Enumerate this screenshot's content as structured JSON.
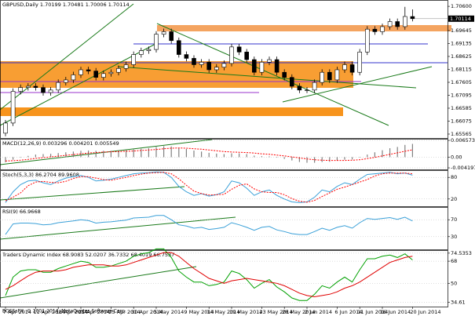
{
  "chart_data": [
    {
      "type": "candlestick",
      "title": "GBPUSD,Daily  1.70199 1.70481 1.70006 1.70114",
      "categories": [
        "7 Apr 2014",
        null,
        null,
        null,
        "11 Apr 2014",
        null,
        null,
        "16 Apr 2014",
        null,
        null,
        "21 Apr 2014",
        null,
        null,
        null,
        "25 Apr 2014",
        null,
        null,
        "30 Apr 2014",
        null,
        null,
        "5 May 2014",
        null,
        null,
        null,
        "9 May 2014",
        null,
        null,
        "14 May 2014",
        null,
        null,
        "19 May 2014",
        null,
        null,
        null,
        "23 May 2014",
        null,
        null,
        "28 May 2014",
        null,
        null,
        "2 Jun 2014",
        null,
        null,
        null,
        "6 Jun 2014",
        null,
        null,
        "11 Jun 2014",
        null,
        null,
        "16 Jun 2014",
        null,
        null,
        null,
        "20 Jun 2014"
      ],
      "open": [
        1.656,
        1.66,
        1.6725,
        1.674,
        1.6745,
        1.674,
        1.672,
        1.673,
        1.676,
        1.677,
        1.679,
        1.681,
        1.6805,
        1.678,
        1.6795,
        1.68,
        1.6815,
        1.683,
        1.687,
        1.6885,
        1.689,
        1.695,
        1.696,
        1.6925,
        1.687,
        1.6855,
        1.683,
        1.684,
        1.681,
        1.682,
        1.6835,
        1.69,
        1.688,
        1.685,
        1.68,
        1.684,
        1.685,
        1.68,
        1.678,
        1.6745,
        1.673,
        1.673,
        1.676,
        1.68,
        1.677,
        1.681,
        1.683,
        1.68,
        1.688,
        1.697,
        1.696,
        1.698,
        1.7,
        1.698,
        1.70199
      ],
      "high": [
        1.6612,
        1.6737,
        1.6752,
        1.6757,
        1.6757,
        1.6752,
        1.6742,
        1.6772,
        1.6782,
        1.6802,
        1.6822,
        1.6822,
        1.6817,
        1.6807,
        1.6812,
        1.6827,
        1.6842,
        1.6882,
        1.6897,
        1.6902,
        1.6962,
        1.6972,
        1.6972,
        1.6937,
        1.6882,
        1.6867,
        1.6852,
        1.6852,
        1.6832,
        1.6847,
        1.6912,
        1.6912,
        1.6892,
        1.6862,
        1.6852,
        1.6862,
        1.6862,
        1.6812,
        1.6792,
        1.6757,
        1.6742,
        1.6772,
        1.6812,
        1.6812,
        1.6822,
        1.6842,
        1.6842,
        1.6892,
        1.6982,
        1.6982,
        1.6992,
        1.7012,
        1.7012,
        1.7058,
        1.70481
      ],
      "low": [
        1.6548,
        1.6588,
        1.6713,
        1.6728,
        1.6728,
        1.6708,
        1.6708,
        1.6718,
        1.6748,
        1.6758,
        1.6778,
        1.6793,
        1.6768,
        1.6768,
        1.6783,
        1.6788,
        1.6803,
        1.6818,
        1.6858,
        1.6873,
        1.6878,
        1.6938,
        1.6913,
        1.6858,
        1.6843,
        1.6818,
        1.6818,
        1.6798,
        1.6798,
        1.6808,
        1.6823,
        1.6868,
        1.6838,
        1.6788,
        1.6788,
        1.6828,
        1.6788,
        1.6768,
        1.6733,
        1.6718,
        1.6718,
        1.6718,
        1.6748,
        1.6758,
        1.6758,
        1.6798,
        1.6788,
        1.6788,
        1.6868,
        1.6948,
        1.6948,
        1.6968,
        1.6968,
        1.6968,
        1.70006
      ],
      "close": [
        1.66,
        1.6725,
        1.674,
        1.6745,
        1.674,
        1.672,
        1.673,
        1.676,
        1.677,
        1.679,
        1.681,
        1.6805,
        1.678,
        1.6795,
        1.68,
        1.6815,
        1.683,
        1.687,
        1.6885,
        1.689,
        1.695,
        1.696,
        1.6925,
        1.687,
        1.6855,
        1.683,
        1.684,
        1.681,
        1.682,
        1.6835,
        1.69,
        1.688,
        1.685,
        1.68,
        1.684,
        1.685,
        1.68,
        1.678,
        1.6745,
        1.673,
        1.673,
        1.676,
        1.68,
        1.677,
        1.681,
        1.683,
        1.68,
        1.688,
        1.697,
        1.696,
        1.698,
        1.7,
        1.698,
        1.702,
        1.70114
      ],
      "ylim": [
        1.6541,
        1.7085
      ],
      "yticks": [
        {
          "value": 1.706,
          "label": "1.70600"
        },
        1.69645,
        1.69135,
        1.68625,
        1.68115,
        1.67605,
        1.67095,
        1.66585,
        1.66075,
        1.65565
      ],
      "bull_color": "#ffffff",
      "bear_color": "#000000"
    },
    {
      "type": "macd",
      "title": "MACD(12,26,9) 0.003296 0.004201 0.005549",
      "ylim": [
        -0.0048,
        0.0072
      ],
      "yticks": [
        0.006573,
        {
          "value": 0,
          "label": "0.00"
        },
        -0.004197
      ],
      "series": [
        {
          "kind": "histogram",
          "color": "#808080",
          "values": [
            -0.002,
            -0.001,
            -0.0002,
            0.0005,
            0.001,
            0.0012,
            0.0013,
            0.0016,
            0.0019,
            0.0022,
            0.0025,
            0.0026,
            0.0025,
            0.0025,
            0.0025,
            0.0026,
            0.0027,
            0.003,
            0.0033,
            0.0035,
            0.004,
            0.0043,
            0.0042,
            0.0037,
            0.0032,
            0.0026,
            0.0022,
            0.0017,
            0.0014,
            0.0012,
            0.0015,
            0.0015,
            0.0012,
            0.0006,
            0.0004,
            0.0003,
            -0.0002,
            -0.0007,
            -0.0013,
            -0.0019,
            -0.0022,
            -0.0022,
            -0.0019,
            -0.0018,
            -0.0014,
            -0.001,
            -0.0009,
            -0.0002,
            0.001,
            0.0019,
            0.0027,
            0.0035,
            0.004,
            0.0048,
            0.0052
          ]
        },
        {
          "kind": "line",
          "dash": true,
          "color": "#ff0000",
          "values": [
            -0.0015,
            -0.0014,
            -0.0012,
            -0.0009,
            -0.0005,
            -0.0002,
            0.0001,
            0.0004,
            0.0007,
            0.001,
            0.0013,
            0.0016,
            0.0018,
            0.002,
            0.0021,
            0.0022,
            0.0023,
            0.0024,
            0.0026,
            0.0028,
            0.003,
            0.0033,
            0.0035,
            0.0036,
            0.0035,
            0.0033,
            0.0031,
            0.0028,
            0.0025,
            0.0022,
            0.002,
            0.0019,
            0.0018,
            0.0016,
            0.0013,
            0.0011,
            0.0008,
            0.0005,
            0.0001,
            -0.0003,
            -0.0007,
            -0.001,
            -0.0012,
            -0.0013,
            -0.0013,
            -0.0013,
            -0.0012,
            -0.001,
            -0.0006,
            -0.0001,
            0.0005,
            0.0011,
            0.0017,
            0.0023,
            0.0029
          ]
        }
      ]
    },
    {
      "type": "line",
      "title": "Stoch(5,3,3) 86.2704 89.9608",
      "ylim": [
        0,
        100
      ],
      "yticks": [
        80,
        20
      ],
      "series": [
        {
          "kind": "line",
          "color": "#3aa0d8",
          "values": [
            10,
            40,
            60,
            70,
            72,
            65,
            60,
            70,
            78,
            82,
            85,
            80,
            70,
            72,
            75,
            80,
            85,
            90,
            92,
            93,
            95,
            94,
            80,
            55,
            40,
            30,
            35,
            28,
            32,
            40,
            70,
            65,
            50,
            30,
            40,
            45,
            30,
            20,
            12,
            10,
            12,
            25,
            45,
            40,
            55,
            65,
            60,
            75,
            88,
            90,
            92,
            94,
            90,
            92,
            86
          ]
        },
        {
          "kind": "line",
          "dash": true,
          "color": "#ff0000",
          "values": [
            15,
            25,
            37,
            57,
            67,
            69,
            66,
            65,
            69,
            77,
            82,
            82,
            78,
            74,
            72,
            76,
            80,
            85,
            89,
            92,
            93,
            94,
            90,
            76,
            58,
            42,
            35,
            31,
            32,
            33,
            47,
            58,
            62,
            48,
            40,
            38,
            38,
            32,
            21,
            14,
            11,
            16,
            27,
            37,
            47,
            53,
            60,
            67,
            74,
            84,
            90,
            92,
            92,
            92,
            90
          ]
        }
      ]
    },
    {
      "type": "line",
      "title": "RSI(9) 66.9668",
      "ylim": [
        0,
        100
      ],
      "yticks": [
        70,
        30
      ],
      "series": [
        {
          "kind": "line",
          "color": "#3aa0d8",
          "values": [
            35,
            60,
            62,
            62,
            61,
            58,
            59,
            63,
            65,
            67,
            70,
            68,
            62,
            64,
            65,
            67,
            69,
            74,
            75,
            76,
            80,
            80,
            70,
            58,
            55,
            50,
            52,
            47,
            49,
            52,
            63,
            58,
            52,
            45,
            52,
            54,
            46,
            42,
            37,
            35,
            35,
            42,
            50,
            45,
            52,
            56,
            50,
            63,
            73,
            71,
            73,
            75,
            71,
            76,
            67
          ]
        }
      ]
    },
    {
      "type": "line",
      "title": "Traders Dynamic Index 68.9083 52.0207 36.7332 68.4019 66.7537",
      "ylim": [
        31,
        77
      ],
      "yticks": [
        74.5353,
        68,
        50,
        34.61
      ],
      "series": [
        {
          "kind": "line",
          "color": "#00a000",
          "values": [
            40,
            55,
            60,
            61,
            61,
            59,
            59,
            62,
            64,
            66,
            68,
            67,
            63,
            63,
            64,
            66,
            68,
            72,
            74,
            75,
            78,
            78,
            71,
            60,
            55,
            51,
            51,
            48,
            49,
            51,
            60,
            58,
            53,
            46,
            50,
            53,
            47,
            43,
            38,
            36,
            36,
            41,
            48,
            46,
            51,
            55,
            51,
            61,
            70,
            70,
            72,
            73,
            71,
            74,
            69
          ]
        },
        {
          "kind": "line",
          "color": "#e00000",
          "values": [
            45,
            48,
            52,
            56,
            59,
            60,
            60,
            60,
            61,
            63,
            64,
            65,
            65,
            65,
            64,
            64,
            65,
            67,
            69,
            71,
            73,
            75,
            75,
            72,
            67,
            62,
            58,
            54,
            52,
            50,
            52,
            53,
            54,
            53,
            52,
            51,
            50,
            48,
            45,
            42,
            40,
            39,
            40,
            41,
            43,
            46,
            48,
            51,
            55,
            59,
            63,
            67,
            69,
            71,
            72
          ]
        }
      ]
    }
  ],
  "footer": "BOSSsFX, © 2001-2014, MetaQuotes Software Corp."
}
